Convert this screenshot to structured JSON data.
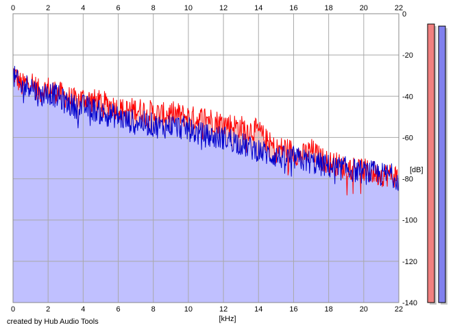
{
  "footer": {
    "credit": "created by Hub Audio Tools"
  },
  "colors": {
    "background": "#ffffff",
    "plot_fill": "#c0c0ff",
    "grid": "#a8a8a8",
    "channel_left": "#ff0000",
    "channel_left_fill": "#f5c0c0",
    "channel_right": "#0000cc",
    "meter_left": "#f08080",
    "meter_right": "#8080ee"
  },
  "chart_data": {
    "type": "line",
    "xlabel": "[kHz]",
    "ylabel": "[dB]",
    "xlim": [
      0,
      22
    ],
    "ylim": [
      -140,
      0
    ],
    "x_ticks": [
      "0",
      "2",
      "4",
      "6",
      "8",
      "10",
      "12",
      "14",
      "16",
      "18",
      "20",
      "22"
    ],
    "y_ticks": [
      "0",
      "-20",
      "-40",
      "-60",
      "-80",
      "-100",
      "-120",
      "-140"
    ],
    "grid": true,
    "x": [
      0,
      0.5,
      1,
      1.5,
      2,
      2.5,
      3,
      3.5,
      4,
      4.5,
      5,
      5.5,
      6,
      6.5,
      7,
      7.5,
      8,
      8.5,
      9,
      9.5,
      10,
      10.5,
      11,
      11.5,
      12,
      12.5,
      13,
      13.5,
      14,
      14.5,
      15,
      15.5,
      16,
      16.5,
      17,
      17.5,
      18,
      18.5,
      19,
      19.5,
      20,
      20.5,
      21,
      21.5,
      22
    ],
    "series": [
      {
        "channel": "left",
        "values": [
          -28,
          -35,
          -32,
          -38,
          -36,
          -38,
          -40,
          -42,
          -41,
          -42,
          -43,
          -44,
          -46,
          -47,
          -46,
          -47,
          -48,
          -49,
          -48,
          -49,
          -50,
          -51,
          -50,
          -52,
          -53,
          -54,
          -55,
          -56,
          -57,
          -62,
          -66,
          -65,
          -67,
          -69,
          -66,
          -70,
          -72,
          -73,
          -75,
          -74,
          -76,
          -77,
          -78,
          -78,
          -79
        ]
      },
      {
        "channel": "right",
        "values": [
          -30,
          -36,
          -34,
          -40,
          -38,
          -40,
          -43,
          -45,
          -45,
          -46,
          -48,
          -49,
          -50,
          -52,
          -52,
          -53,
          -54,
          -55,
          -54,
          -55,
          -56,
          -58,
          -59,
          -60,
          -60,
          -61,
          -63,
          -65,
          -66,
          -68,
          -69,
          -70,
          -70,
          -71,
          -72,
          -73,
          -74,
          -75,
          -75,
          -76,
          -77,
          -77,
          -78,
          -78,
          -80
        ]
      }
    ],
    "level_meters": [
      {
        "channel": "left",
        "value_db": -5
      },
      {
        "channel": "right",
        "value_db": -6
      }
    ]
  }
}
